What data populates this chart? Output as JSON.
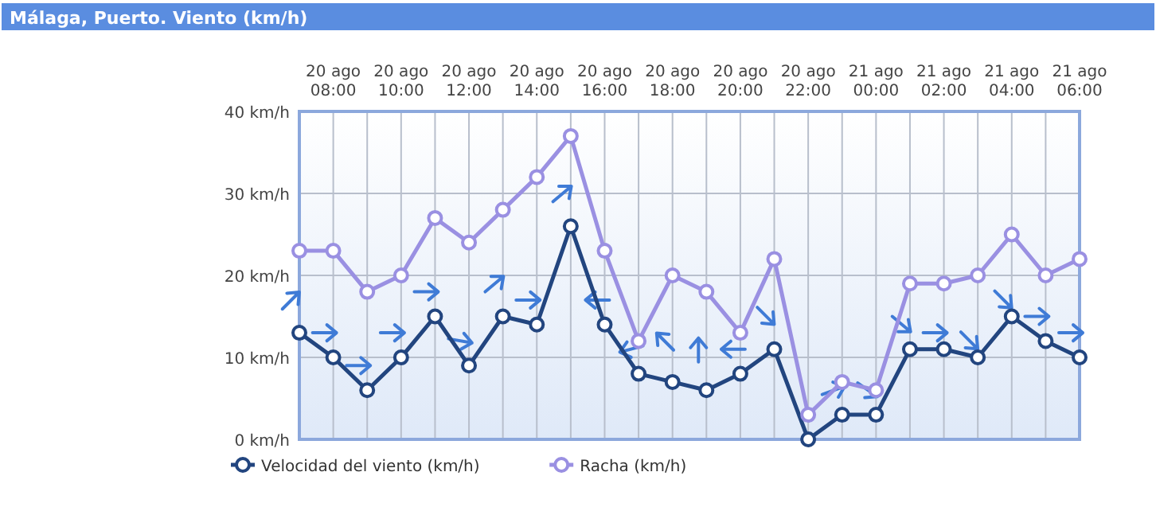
{
  "chart_data": {
    "type": "line",
    "title": "Málaga, Puerto. Viento (km/h)",
    "categories": [
      null,
      "20 ago 08:00",
      null,
      "20 ago 10:00",
      null,
      "20 ago 12:00",
      null,
      "20 ago 14:00",
      null,
      "20 ago 16:00",
      null,
      "20 ago 18:00",
      null,
      "20 ago 20:00",
      null,
      "20 ago 22:00",
      null,
      "21 ago 00:00",
      null,
      "21 ago 02:00",
      null,
      "21 ago 04:00",
      null,
      "21 ago 06:00"
    ],
    "series": [
      {
        "name": "Velocidad del viento (km/h)",
        "color": "#22457f",
        "values": [
          13,
          10,
          6,
          10,
          15,
          9,
          15,
          14,
          26,
          14,
          8,
          7,
          6,
          8,
          11,
          0,
          3,
          3,
          11,
          11,
          10,
          15,
          12,
          10
        ]
      },
      {
        "name": "Racha (km/h)",
        "color": "#9a90e2",
        "values": [
          23,
          23,
          18,
          20,
          27,
          24,
          28,
          32,
          37,
          23,
          12,
          20,
          18,
          13,
          22,
          3,
          7,
          6,
          19,
          19,
          20,
          25,
          20,
          22
        ]
      }
    ],
    "ylim": [
      0,
      40
    ],
    "yticks": [
      {
        "value": 0,
        "label": "0 km/h"
      },
      {
        "value": 10,
        "label": "10 km/h"
      },
      {
        "value": 20,
        "label": "20 km/h"
      },
      {
        "value": 30,
        "label": "30 km/h"
      },
      {
        "value": 40,
        "label": "40 km/h"
      }
    ],
    "grid": true,
    "legend": "bottom left",
    "marker": "circle",
    "line_style": "solid"
  }
}
